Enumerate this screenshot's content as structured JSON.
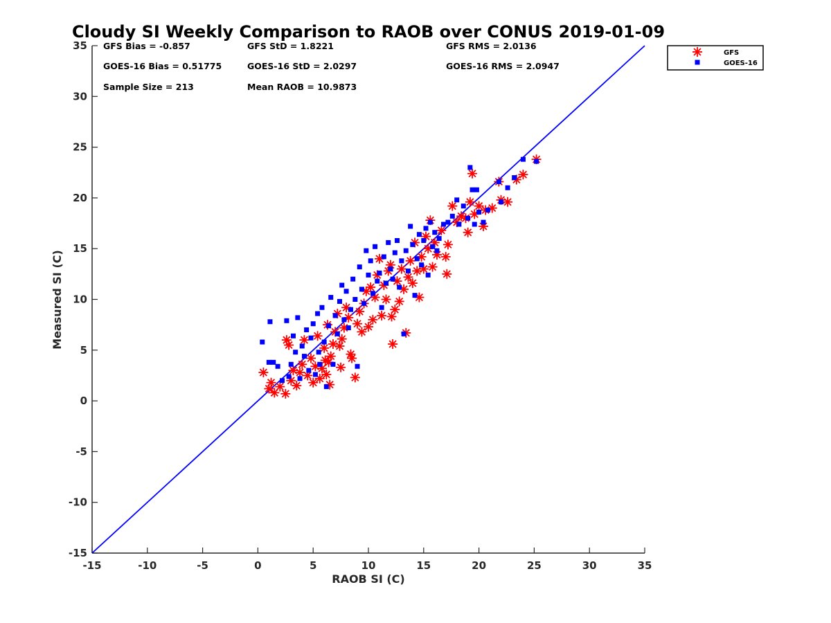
{
  "chart_data": {
    "type": "scatter",
    "title": "Cloudy SI Weekly Comparison to RAOB over CONUS 2019-01-09",
    "xlabel": "RAOB SI (C)",
    "ylabel": "Measured SI (C)",
    "xlim": [
      -15,
      35
    ],
    "ylim": [
      -15,
      35
    ],
    "xticks": [
      -15,
      -10,
      -5,
      0,
      5,
      10,
      15,
      20,
      25,
      30,
      35
    ],
    "yticks": [
      -15,
      -10,
      -5,
      0,
      5,
      10,
      15,
      20,
      25,
      30,
      35
    ],
    "grid": false,
    "legend_position": "top-right-outside",
    "reference_line": {
      "x": [
        -15,
        35
      ],
      "y": [
        -15,
        35
      ],
      "color": "#0000ff"
    },
    "stats": [
      [
        "GFS Bias = -0.857",
        "GFS StD = 1.8221",
        "GFS RMS = 2.0136"
      ],
      [
        "GOES-16 Bias = 0.51775",
        "GOES-16 StD = 2.0297",
        "GOES-16 RMS = 2.0947"
      ],
      [
        "Sample Size = 213",
        "Mean RAOB = 10.9873",
        ""
      ]
    ],
    "series": [
      {
        "name": "GFS",
        "marker": "asterisk",
        "color": "#ff0000",
        "points": [
          [
            0.5,
            2.8
          ],
          [
            1.0,
            1.2
          ],
          [
            1.2,
            1.8
          ],
          [
            1.5,
            0.8
          ],
          [
            2.0,
            1.4
          ],
          [
            2.5,
            0.7
          ],
          [
            2.6,
            6.0
          ],
          [
            2.8,
            5.5
          ],
          [
            3.0,
            2.0
          ],
          [
            3.2,
            3.0
          ],
          [
            3.5,
            1.5
          ],
          [
            3.8,
            2.8
          ],
          [
            4.0,
            3.6
          ],
          [
            4.2,
            6.0
          ],
          [
            4.5,
            2.5
          ],
          [
            4.8,
            4.2
          ],
          [
            5.0,
            1.8
          ],
          [
            5.2,
            3.4
          ],
          [
            5.4,
            6.4
          ],
          [
            5.6,
            2.2
          ],
          [
            5.8,
            3.2
          ],
          [
            6.0,
            5.2
          ],
          [
            6.1,
            4.0
          ],
          [
            6.2,
            2.6
          ],
          [
            6.3,
            7.5
          ],
          [
            6.4,
            3.8
          ],
          [
            6.5,
            1.6
          ],
          [
            6.6,
            4.4
          ],
          [
            6.8,
            5.6
          ],
          [
            7.0,
            6.8
          ],
          [
            7.2,
            8.6
          ],
          [
            7.4,
            5.4
          ],
          [
            7.5,
            3.3
          ],
          [
            7.6,
            6.1
          ],
          [
            7.8,
            7.2
          ],
          [
            8.0,
            9.2
          ],
          [
            8.2,
            8.2
          ],
          [
            8.4,
            4.6
          ],
          [
            8.5,
            4.2
          ],
          [
            8.8,
            2.3
          ],
          [
            9.0,
            7.6
          ],
          [
            9.2,
            8.8
          ],
          [
            9.4,
            6.8
          ],
          [
            9.6,
            9.6
          ],
          [
            9.8,
            10.8
          ],
          [
            10.0,
            7.3
          ],
          [
            10.2,
            11.2
          ],
          [
            10.4,
            8.0
          ],
          [
            10.6,
            10.2
          ],
          [
            10.8,
            12.4
          ],
          [
            11.0,
            14.0
          ],
          [
            11.2,
            8.4
          ],
          [
            11.4,
            11.4
          ],
          [
            11.6,
            10.0
          ],
          [
            11.8,
            12.8
          ],
          [
            12.0,
            13.4
          ],
          [
            12.1,
            8.3
          ],
          [
            12.2,
            5.6
          ],
          [
            12.4,
            9.0
          ],
          [
            12.6,
            11.8
          ],
          [
            12.8,
            9.8
          ],
          [
            13.0,
            13.0
          ],
          [
            13.2,
            11.0
          ],
          [
            13.4,
            6.7
          ],
          [
            13.6,
            12.2
          ],
          [
            13.8,
            13.8
          ],
          [
            14.0,
            11.6
          ],
          [
            14.2,
            15.6
          ],
          [
            14.4,
            12.8
          ],
          [
            14.6,
            10.2
          ],
          [
            14.8,
            14.2
          ],
          [
            15.0,
            13.0
          ],
          [
            15.2,
            16.2
          ],
          [
            15.4,
            15.0
          ],
          [
            15.6,
            17.8
          ],
          [
            15.8,
            13.2
          ],
          [
            16.0,
            15.6
          ],
          [
            16.2,
            14.4
          ],
          [
            16.6,
            16.8
          ],
          [
            17.0,
            14.2
          ],
          [
            17.1,
            12.5
          ],
          [
            17.2,
            15.4
          ],
          [
            17.6,
            19.2
          ],
          [
            18.0,
            17.6
          ],
          [
            18.4,
            18.2
          ],
          [
            18.8,
            18.0
          ],
          [
            19.0,
            16.6
          ],
          [
            19.2,
            19.6
          ],
          [
            19.4,
            22.4
          ],
          [
            19.6,
            18.4
          ],
          [
            20.0,
            19.2
          ],
          [
            20.4,
            17.2
          ],
          [
            20.6,
            18.8
          ],
          [
            21.2,
            19.0
          ],
          [
            21.8,
            21.6
          ],
          [
            22.0,
            19.8
          ],
          [
            22.6,
            19.6
          ],
          [
            23.4,
            21.8
          ],
          [
            24.0,
            22.3
          ],
          [
            25.2,
            23.8
          ]
        ]
      },
      {
        "name": "GOES-16",
        "marker": "square",
        "color": "#0000ff",
        "points": [
          [
            0.4,
            5.8
          ],
          [
            1.0,
            3.8
          ],
          [
            1.1,
            7.8
          ],
          [
            1.4,
            3.8
          ],
          [
            1.8,
            3.4
          ],
          [
            2.2,
            2.0
          ],
          [
            2.6,
            7.9
          ],
          [
            2.8,
            2.4
          ],
          [
            3.0,
            3.6
          ],
          [
            3.2,
            6.4
          ],
          [
            3.4,
            4.8
          ],
          [
            3.6,
            8.2
          ],
          [
            3.8,
            2.2
          ],
          [
            4.0,
            5.4
          ],
          [
            4.2,
            4.4
          ],
          [
            4.4,
            7.0
          ],
          [
            4.6,
            3.0
          ],
          [
            4.8,
            6.2
          ],
          [
            5.0,
            7.6
          ],
          [
            5.2,
            2.6
          ],
          [
            5.4,
            8.6
          ],
          [
            5.5,
            4.8
          ],
          [
            5.6,
            3.6
          ],
          [
            5.8,
            9.2
          ],
          [
            6.0,
            5.8
          ],
          [
            6.2,
            1.4
          ],
          [
            6.4,
            7.4
          ],
          [
            6.6,
            10.2
          ],
          [
            6.8,
            3.6
          ],
          [
            7.0,
            8.4
          ],
          [
            7.2,
            6.6
          ],
          [
            7.4,
            9.8
          ],
          [
            7.6,
            11.4
          ],
          [
            7.8,
            8.0
          ],
          [
            8.0,
            10.8
          ],
          [
            8.2,
            7.2
          ],
          [
            8.4,
            9.0
          ],
          [
            8.6,
            12.0
          ],
          [
            8.8,
            10.0
          ],
          [
            9.0,
            3.4
          ],
          [
            9.2,
            13.2
          ],
          [
            9.4,
            11.0
          ],
          [
            9.6,
            9.6
          ],
          [
            9.8,
            14.8
          ],
          [
            10.0,
            12.4
          ],
          [
            10.2,
            13.8
          ],
          [
            10.4,
            10.6
          ],
          [
            10.6,
            15.2
          ],
          [
            10.8,
            11.8
          ],
          [
            11.0,
            12.6
          ],
          [
            11.2,
            9.2
          ],
          [
            11.4,
            14.2
          ],
          [
            11.6,
            11.6
          ],
          [
            11.8,
            15.6
          ],
          [
            12.0,
            13.0
          ],
          [
            12.2,
            12.0
          ],
          [
            12.4,
            14.6
          ],
          [
            12.6,
            15.8
          ],
          [
            12.8,
            11.2
          ],
          [
            13.0,
            13.8
          ],
          [
            13.2,
            6.6
          ],
          [
            13.4,
            14.8
          ],
          [
            13.6,
            12.8
          ],
          [
            13.8,
            17.2
          ],
          [
            14.0,
            15.4
          ],
          [
            14.2,
            10.4
          ],
          [
            14.4,
            14.0
          ],
          [
            14.6,
            16.4
          ],
          [
            14.8,
            13.4
          ],
          [
            15.0,
            15.8
          ],
          [
            15.2,
            17.0
          ],
          [
            15.4,
            12.4
          ],
          [
            15.6,
            17.6
          ],
          [
            15.8,
            15.2
          ],
          [
            16.0,
            16.6
          ],
          [
            16.2,
            14.8
          ],
          [
            16.4,
            16.0
          ],
          [
            16.8,
            17.4
          ],
          [
            17.2,
            17.6
          ],
          [
            17.6,
            18.2
          ],
          [
            18.0,
            19.8
          ],
          [
            18.2,
            17.4
          ],
          [
            18.6,
            19.2
          ],
          [
            19.0,
            18.0
          ],
          [
            19.2,
            23.0
          ],
          [
            19.4,
            20.8
          ],
          [
            19.6,
            17.4
          ],
          [
            19.8,
            20.8
          ],
          [
            20.0,
            18.6
          ],
          [
            20.4,
            17.6
          ],
          [
            20.8,
            18.8
          ],
          [
            21.8,
            21.6
          ],
          [
            22.0,
            19.6
          ],
          [
            22.6,
            21.0
          ],
          [
            23.2,
            22.0
          ],
          [
            24.0,
            23.8
          ],
          [
            25.2,
            23.6
          ]
        ]
      }
    ]
  }
}
